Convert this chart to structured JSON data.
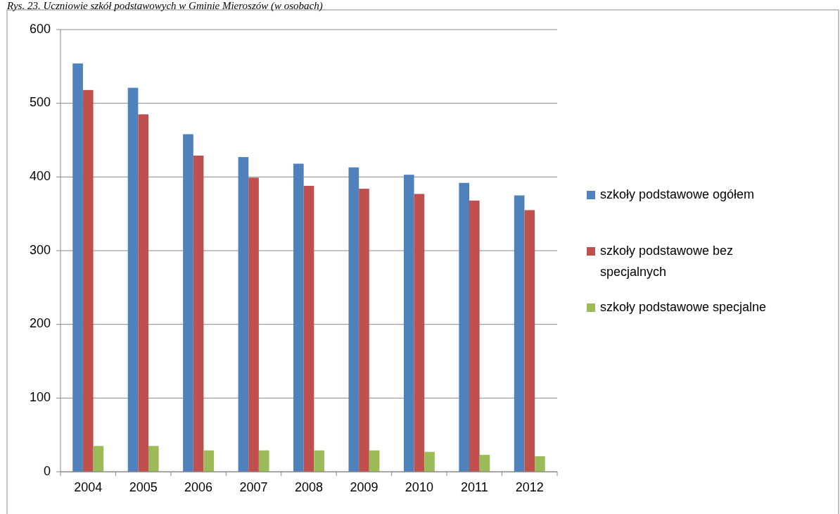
{
  "chart_data": {
    "type": "bar",
    "title": "Rys. 23. Uczniowie szkół podstawowych w Gminie Mieroszów (w osobach)",
    "categories": [
      "2004",
      "2005",
      "2006",
      "2007",
      "2008",
      "2009",
      "2010",
      "2011",
      "2012"
    ],
    "series": [
      {
        "name": "szkoły podstawowe ogółem",
        "color": "#4f81bd",
        "values": [
          554,
          521,
          458,
          427,
          418,
          413,
          403,
          392,
          375
        ]
      },
      {
        "name": "szkoły podstawowe bez specjalnych",
        "color": "#c0504d",
        "values": [
          518,
          485,
          429,
          399,
          388,
          384,
          377,
          368,
          355
        ]
      },
      {
        "name": "szkoły podstawowe specjalne",
        "color": "#9bbb59",
        "values": [
          35,
          35,
          29,
          29,
          29,
          29,
          27,
          23,
          21
        ]
      }
    ],
    "ylim": [
      0,
      600
    ],
    "yticks": [
      0,
      100,
      200,
      300,
      400,
      500,
      600
    ],
    "grid": "y",
    "legend": "right"
  }
}
